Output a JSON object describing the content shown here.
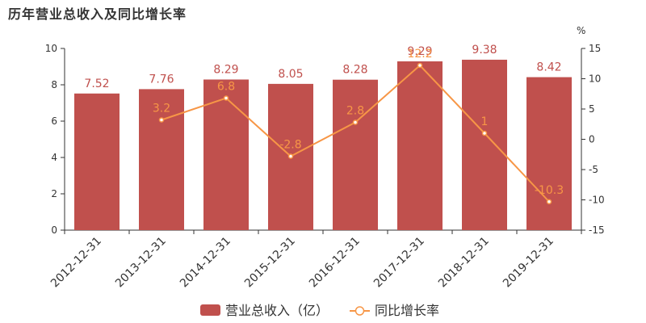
{
  "title": "历年营业总收入及同比增长率",
  "chart_data": {
    "type": "bar",
    "categories": [
      "2012-12-31",
      "2013-12-31",
      "2014-12-31",
      "2015-12-31",
      "2016-12-31",
      "2017-12-31",
      "2018-12-31",
      "2019-12-31"
    ],
    "series": [
      {
        "name": "营业总收入（亿）",
        "type": "bar",
        "axis": "left",
        "color": "#c0504d",
        "values": [
          7.52,
          7.76,
          8.29,
          8.05,
          8.28,
          9.29,
          9.38,
          8.42
        ],
        "labels": [
          "7.52",
          "7.76",
          "8.29",
          "8.05",
          "8.28",
          "9.29",
          "9.38",
          "8.42"
        ]
      },
      {
        "name": "同比增长率",
        "type": "line",
        "axis": "right",
        "color": "#f79646",
        "values": [
          null,
          3.2,
          6.8,
          -2.8,
          2.8,
          12.2,
          1,
          -10.3
        ],
        "labels": [
          "",
          "3.2",
          "6.8",
          "-2.8",
          "2.8",
          "12.2",
          "1",
          "-10.3"
        ]
      }
    ],
    "y_left": {
      "min": 0,
      "max": 10,
      "ticks": [
        "0",
        "2",
        "4",
        "6",
        "8",
        "10"
      ]
    },
    "y_right": {
      "min": -15,
      "max": 15,
      "ticks": [
        "-15",
        "-10",
        "-5",
        "0",
        "5",
        "10",
        "15"
      ],
      "unit": "%"
    },
    "grid": false,
    "legend": "bottom-center"
  }
}
